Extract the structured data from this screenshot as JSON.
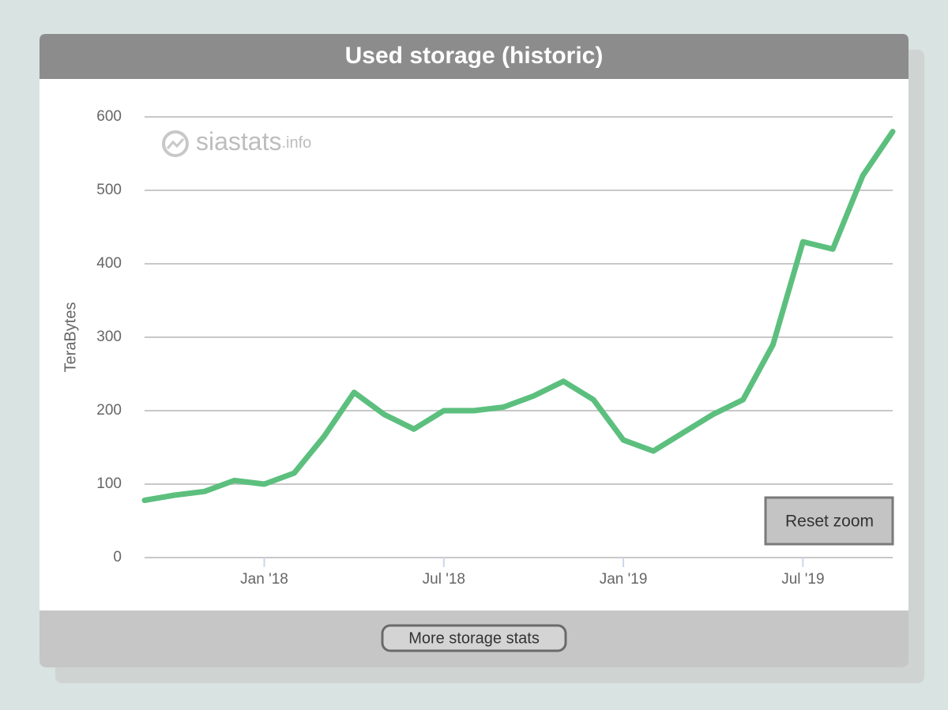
{
  "chart_data": {
    "type": "line",
    "title": "Used storage (historic)",
    "y_label": "TeraBytes",
    "watermark": {
      "name": "siastats",
      "suffix": ".info"
    },
    "reset_button": "Reset zoom",
    "footer_button": "More storage stats",
    "color": "#5cbf7e",
    "x": [
      "2017-09",
      "2017-10",
      "2017-11",
      "2017-12",
      "2018-01",
      "2018-02",
      "2018-03",
      "2018-04",
      "2018-05",
      "2018-06",
      "2018-07",
      "2018-08",
      "2018-09",
      "2018-10",
      "2018-11",
      "2018-12",
      "2019-01",
      "2019-02",
      "2019-03",
      "2019-04",
      "2019-05",
      "2019-06",
      "2019-07",
      "2019-08",
      "2019-09",
      "2019-10"
    ],
    "values": [
      78,
      85,
      90,
      105,
      100,
      115,
      165,
      225,
      195,
      175,
      200,
      200,
      205,
      220,
      240,
      215,
      160,
      145,
      170,
      195,
      215,
      290,
      430,
      420,
      520,
      580
    ],
    "xlim": [
      "2017-09",
      "2019-10"
    ],
    "xticks": [
      {
        "value": "2018-01",
        "label": "Jan '18"
      },
      {
        "value": "2018-07",
        "label": "Jul '18"
      },
      {
        "value": "2019-01",
        "label": "Jan '19"
      },
      {
        "value": "2019-07",
        "label": "Jul '19"
      }
    ],
    "ylim": [
      0,
      600
    ],
    "yticks": [
      0,
      100,
      200,
      300,
      400,
      500,
      600
    ],
    "grid": true
  }
}
